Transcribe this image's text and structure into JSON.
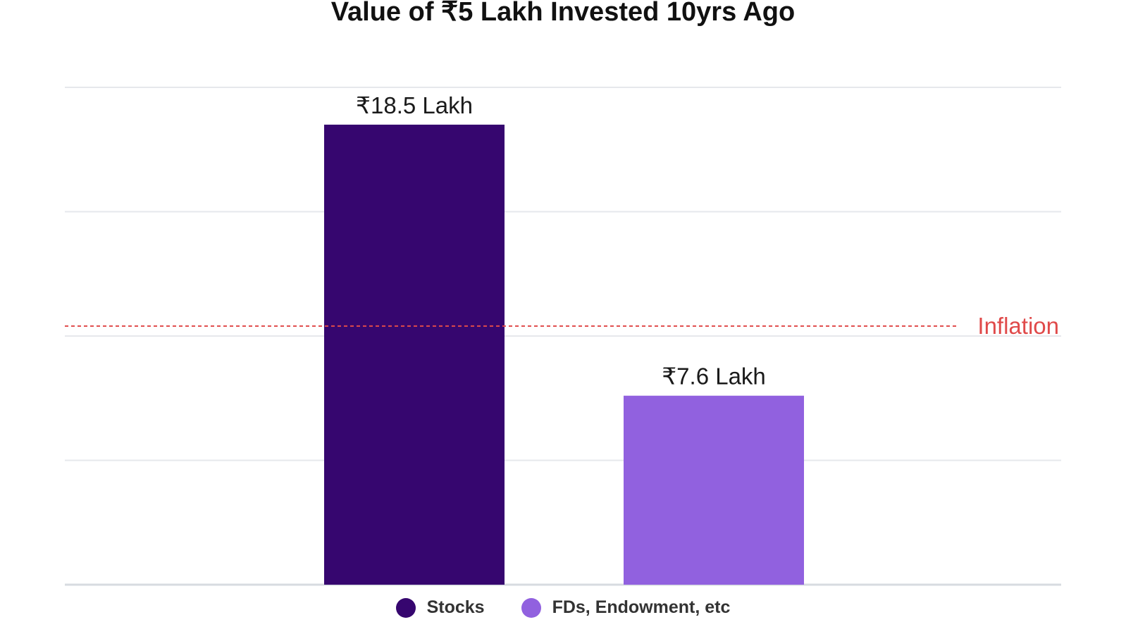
{
  "chart_data": {
    "type": "bar",
    "title": "Value of ₹5 Lakh Invested 10yrs Ago",
    "categories": [
      "Stocks",
      "FDs, Endowment, etc"
    ],
    "values": [
      18.5,
      7.6
    ],
    "value_labels": [
      "₹18.5 Lakh",
      "₹7.6 Lakh"
    ],
    "colors": [
      "#36066f",
      "#9161df"
    ],
    "ylim": [
      0,
      20
    ],
    "xlabel": "",
    "ylabel": "",
    "grid": true,
    "legend_position": "bottom",
    "reference_line": {
      "label": "Inflation",
      "value": 10.4,
      "color": "#e04a4a",
      "style": "dashed"
    }
  },
  "legend": [
    {
      "label": "Stocks",
      "color": "#36066f"
    },
    {
      "label": "FDs, Endowment, etc",
      "color": "#9161df"
    }
  ]
}
